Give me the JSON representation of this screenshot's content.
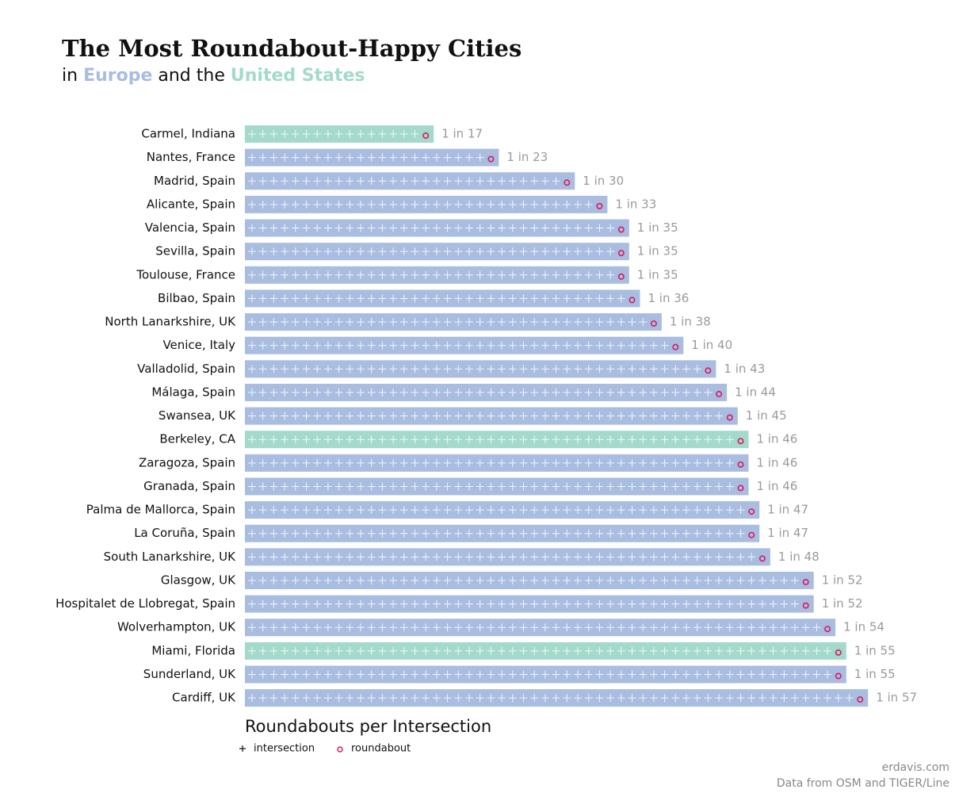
{
  "chart_data": {
    "type": "bar",
    "title": "The Most Roundabout-Happy Cities",
    "subtitle": [
      {
        "text": "in "
      },
      {
        "text": "Europe",
        "color": "#a9bde0"
      },
      {
        "text": " and the "
      },
      {
        "text": "United States",
        "color": "#a3dacb"
      }
    ],
    "categories": [
      "Carmel, Indiana",
      "Nantes, France",
      "Madrid, Spain",
      "Alicante, Spain",
      "Valencia, Spain",
      "Sevilla, Spain",
      "Toulouse, France",
      "Bilbao, Spain",
      "North Lanarkshire, UK",
      "Venice, Italy",
      "Valladolid, Spain",
      "Málaga, Spain",
      "Swansea, UK",
      "Berkeley, CA",
      "Zaragoza, Spain",
      "Granada, Spain",
      "Palma de Mallorca, Spain",
      "La Coruña, Spain",
      "South Lanarkshire, UK",
      "Glasgow, UK",
      "Hospitalet de Llobregat, Spain",
      "Wolverhampton, UK",
      "Miami, Florida",
      "Sunderland, UK",
      "Cardiff, UK"
    ],
    "values": [
      17,
      23,
      30,
      33,
      35,
      35,
      35,
      36,
      38,
      40,
      43,
      44,
      45,
      46,
      46,
      46,
      47,
      47,
      48,
      52,
      52,
      54,
      55,
      55,
      57
    ],
    "value_labels": [
      "1 in 17",
      "1 in 23",
      "1 in 30",
      "1 in 33",
      "1 in 35",
      "1 in 35",
      "1 in 35",
      "1 in 36",
      "1 in 38",
      "1 in 40",
      "1 in 43",
      "1 in 44",
      "1 in 45",
      "1 in 46",
      "1 in 46",
      "1 in 46",
      "1 in 47",
      "1 in 47",
      "1 in 48",
      "1 in 52",
      "1 in 52",
      "1 in 54",
      "1 in 55",
      "1 in 55",
      "1 in 57"
    ],
    "colors": [
      "#a3dacb",
      "#a9bde0",
      "#a9bde0",
      "#a9bde0",
      "#a9bde0",
      "#a9bde0",
      "#a9bde0",
      "#a9bde0",
      "#a9bde0",
      "#a9bde0",
      "#a9bde0",
      "#a9bde0",
      "#a9bde0",
      "#a3dacb",
      "#a9bde0",
      "#a9bde0",
      "#a9bde0",
      "#a9bde0",
      "#a9bde0",
      "#a9bde0",
      "#a9bde0",
      "#a9bde0",
      "#a3dacb",
      "#a9bde0",
      "#a9bde0"
    ],
    "xlabel": "Roundabouts per Intersection",
    "legend": [
      {
        "name": "intersection",
        "marker": "plus"
      },
      {
        "name": "roundabout",
        "marker": "circle",
        "color": "#d81b60"
      }
    ],
    "credits": [
      "erdavis.com",
      "Data from OSM and TIGER/Line"
    ]
  }
}
